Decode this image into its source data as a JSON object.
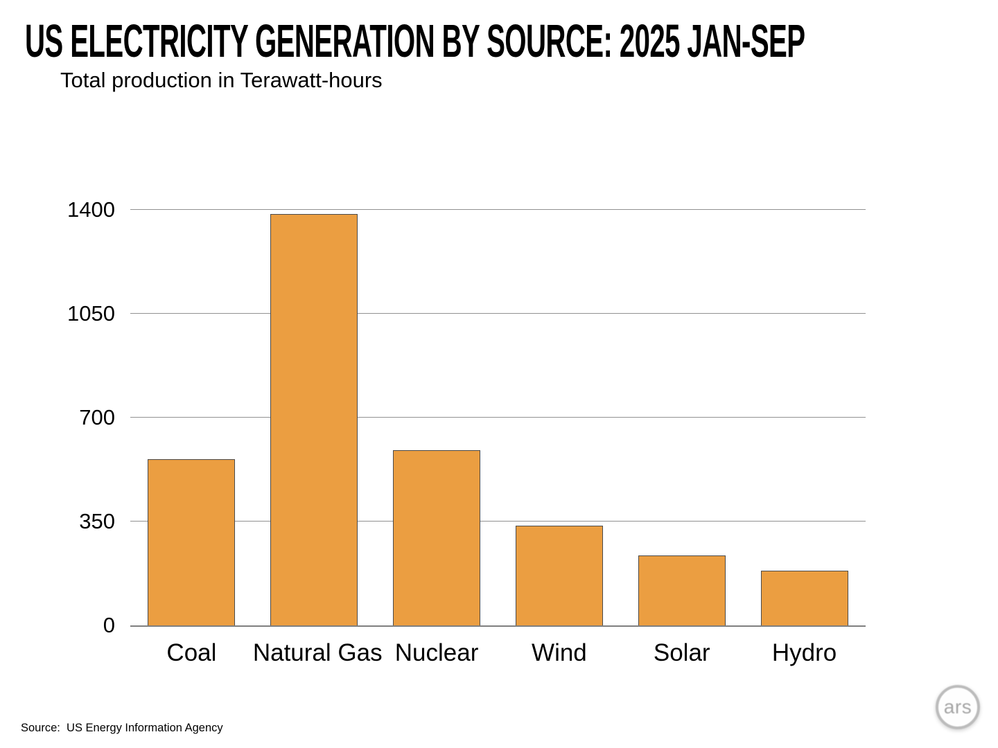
{
  "header": {
    "title": "US ELECTRICITY GENERATION BY SOURCE: 2025 JAN-SEP",
    "subtitle": "Total production in Terawatt-hours"
  },
  "footer": {
    "source": "Source:  US Energy Information Agency",
    "logo_text": "ars"
  },
  "colors": {
    "bar_fill": "#EB9E41",
    "bar_border": "#4a4a4a",
    "gridline": "#919191",
    "axis": "#7f7f7f",
    "text": "#000000",
    "logo_gray": "#a6a6a6"
  },
  "chart_data": {
    "type": "bar",
    "categories": [
      "Coal",
      "Natural Gas",
      "Nuclear",
      "Wind",
      "Solar",
      "Hydro"
    ],
    "values": [
      560,
      1385,
      590,
      335,
      235,
      185
    ],
    "title": "US ELECTRICITY GENERATION BY SOURCE: 2025 JAN-SEP",
    "subtitle": "Total production in Terawatt-hours",
    "xlabel": "",
    "ylabel": "Total production in Terawatt-hours",
    "ylim": [
      0,
      1400
    ],
    "yticks": [
      0,
      350,
      700,
      1050,
      1400
    ],
    "grid": true,
    "legend": false,
    "bar_color": "#EB9E41"
  }
}
